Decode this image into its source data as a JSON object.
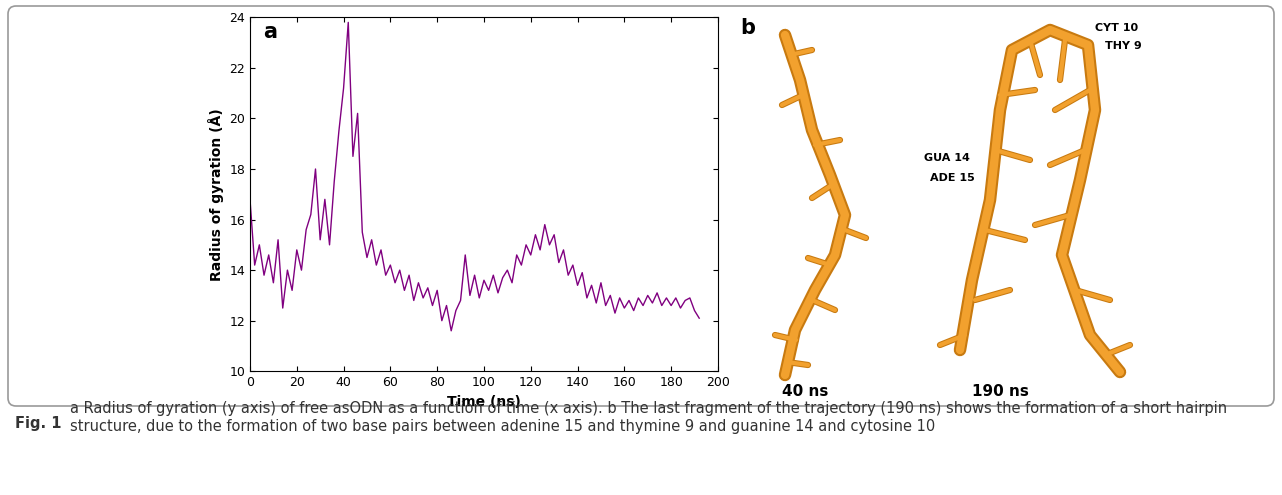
{
  "chart_data": {
    "type": "line",
    "title": "a",
    "x_label": "Time (ns)",
    "y_label": "Radius of gyration (Å)",
    "x": [
      0,
      2,
      4,
      6,
      8,
      10,
      12,
      14,
      16,
      18,
      20,
      22,
      24,
      26,
      28,
      30,
      32,
      34,
      36,
      38,
      40,
      42,
      44,
      46,
      48,
      50,
      52,
      54,
      56,
      58,
      60,
      62,
      64,
      66,
      68,
      70,
      72,
      74,
      76,
      78,
      80,
      82,
      84,
      86,
      88,
      90,
      92,
      94,
      96,
      98,
      100,
      102,
      104,
      106,
      108,
      110,
      112,
      114,
      116,
      118,
      120,
      122,
      124,
      126,
      128,
      130,
      132,
      134,
      136,
      138,
      140,
      142,
      144,
      146,
      148,
      150,
      152,
      154,
      156,
      158,
      160,
      162,
      164,
      166,
      168,
      170,
      172,
      174,
      176,
      178,
      180,
      182,
      184,
      186,
      188,
      190,
      192
    ],
    "values": [
      16.8,
      14.2,
      15.0,
      13.8,
      14.6,
      13.5,
      15.2,
      12.5,
      14.0,
      13.2,
      14.8,
      14.0,
      15.6,
      16.2,
      18.0,
      15.2,
      16.8,
      15.0,
      17.5,
      19.5,
      21.2,
      23.8,
      18.5,
      20.2,
      15.5,
      14.5,
      15.2,
      14.2,
      14.8,
      13.8,
      14.2,
      13.5,
      14.0,
      13.2,
      13.8,
      12.8,
      13.5,
      12.9,
      13.3,
      12.6,
      13.2,
      12.0,
      12.6,
      11.6,
      12.4,
      12.8,
      14.6,
      13.0,
      13.8,
      12.9,
      13.6,
      13.2,
      13.8,
      13.1,
      13.7,
      14.0,
      13.5,
      14.6,
      14.2,
      15.0,
      14.6,
      15.4,
      14.8,
      15.8,
      15.0,
      15.4,
      14.3,
      14.8,
      13.8,
      14.2,
      13.4,
      13.9,
      12.9,
      13.4,
      12.7,
      13.5,
      12.6,
      13.0,
      12.3,
      12.9,
      12.5,
      12.8,
      12.4,
      12.9,
      12.6,
      13.0,
      12.7,
      13.1,
      12.6,
      12.9,
      12.6,
      12.9,
      12.5,
      12.8,
      12.9,
      12.4,
      12.1
    ],
    "color": "#800080",
    "xlim": [
      0,
      200
    ],
    "xticks": [
      0,
      20,
      40,
      60,
      80,
      100,
      120,
      140,
      160,
      180,
      200
    ],
    "ylim": [
      10,
      24
    ],
    "yticks": [
      10,
      12,
      14,
      16,
      18,
      20,
      22,
      24
    ],
    "grid": false
  },
  "panel_b": {
    "label": "b",
    "snapshots": [
      {
        "time": "40 ns",
        "annotations": []
      },
      {
        "time": "190 ns",
        "annotations": [
          "CYT 10",
          "THY 9",
          "GUA 14",
          "ADE 15"
        ]
      }
    ]
  },
  "caption": {
    "label": "Fig. 1",
    "text": "a Radius of gyration (y axis) of free asODN as a function of time (x axis). b The last fragment of the trajectory (190 ns) shows the formation of a short hairpin structure, due to the formation of two base pairs between adenine 15 and thymine 9 and guanine 14 and cytosine 10"
  }
}
